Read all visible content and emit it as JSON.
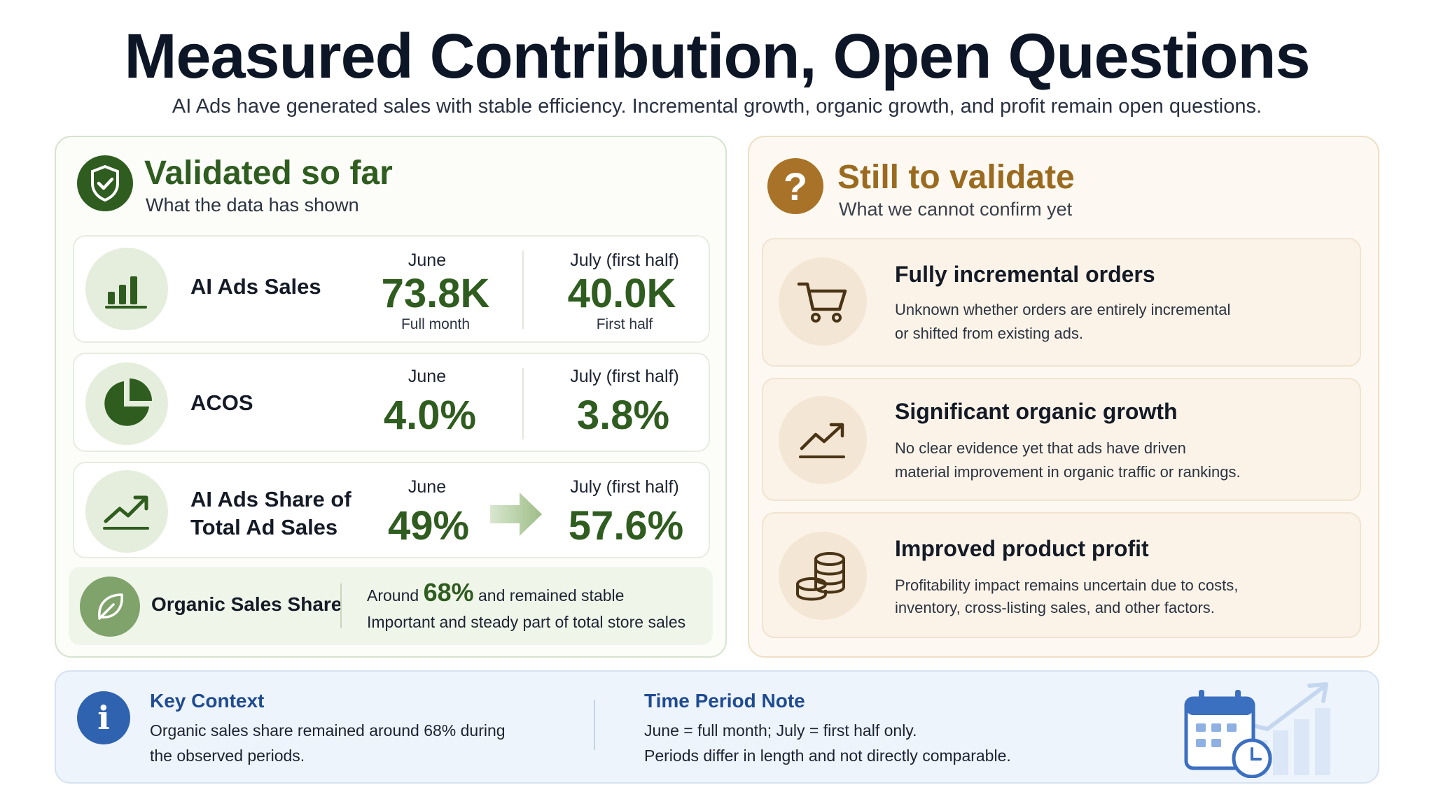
{
  "header": {
    "title": "Measured Contribution, Open Questions",
    "subtitle": "AI Ads have generated sales with stable efficiency. Incremental growth, organic growth, and profit remain open questions."
  },
  "validated": {
    "title": "Validated so far",
    "subtitle": "What the data has shown",
    "icon": "shield-check-icon",
    "color": "#2f5c1f",
    "metrics": [
      {
        "label": "AI Ads Sales",
        "icon": "bar-chart-icon",
        "june_head": "June",
        "june_value": "73.8K",
        "june_note": "Full month",
        "july_head": "July (first half)",
        "july_value": "40.0K",
        "july_note": "First half"
      },
      {
        "label": "ACOS",
        "icon": "pie-chart-icon",
        "june_head": "June",
        "june_value": "4.0%",
        "july_head": "July (first half)",
        "july_value": "3.8%"
      },
      {
        "label_line1": "AI Ads Share of",
        "label_line2": "Total Ad Sales",
        "icon": "trend-up-icon",
        "june_head": "June",
        "june_value": "49%",
        "july_head": "July (first half)",
        "july_value": "57.6%"
      }
    ],
    "organic": {
      "label": "Organic Sales Share",
      "icon": "leaf-icon",
      "prefix": "Around",
      "value": "68%",
      "suffix": "and remained stable",
      "note": "Important and steady part of total store sales"
    }
  },
  "to_validate": {
    "title": "Still to validate",
    "subtitle": "What we cannot confirm yet",
    "icon": "question-icon",
    "color": "#9a6b1f",
    "items": [
      {
        "icon": "cart-icon",
        "title": "Fully incremental orders",
        "line1": "Unknown whether orders are entirely incremental",
        "line2": "or shifted from existing ads."
      },
      {
        "icon": "growth-chart-icon",
        "title": "Significant organic growth",
        "line1": "No clear evidence yet that ads have driven",
        "line2": "material improvement in organic traffic or rankings."
      },
      {
        "icon": "coins-icon",
        "title": "Improved product profit",
        "line1": "Profitability impact remains uncertain due to costs,",
        "line2": "inventory, cross-listing sales, and other factors."
      }
    ]
  },
  "footer": {
    "key_context": {
      "icon": "info-icon",
      "title": "Key Context",
      "line1": "Organic sales share remained around 68% during",
      "line2": "the observed periods."
    },
    "time_note": {
      "title": "Time Period Note",
      "line1": "June = full month; July = first half only.",
      "line2": "Periods differ in length and not directly comparable."
    },
    "illustration": "calendar-clock-chart-icon"
  }
}
